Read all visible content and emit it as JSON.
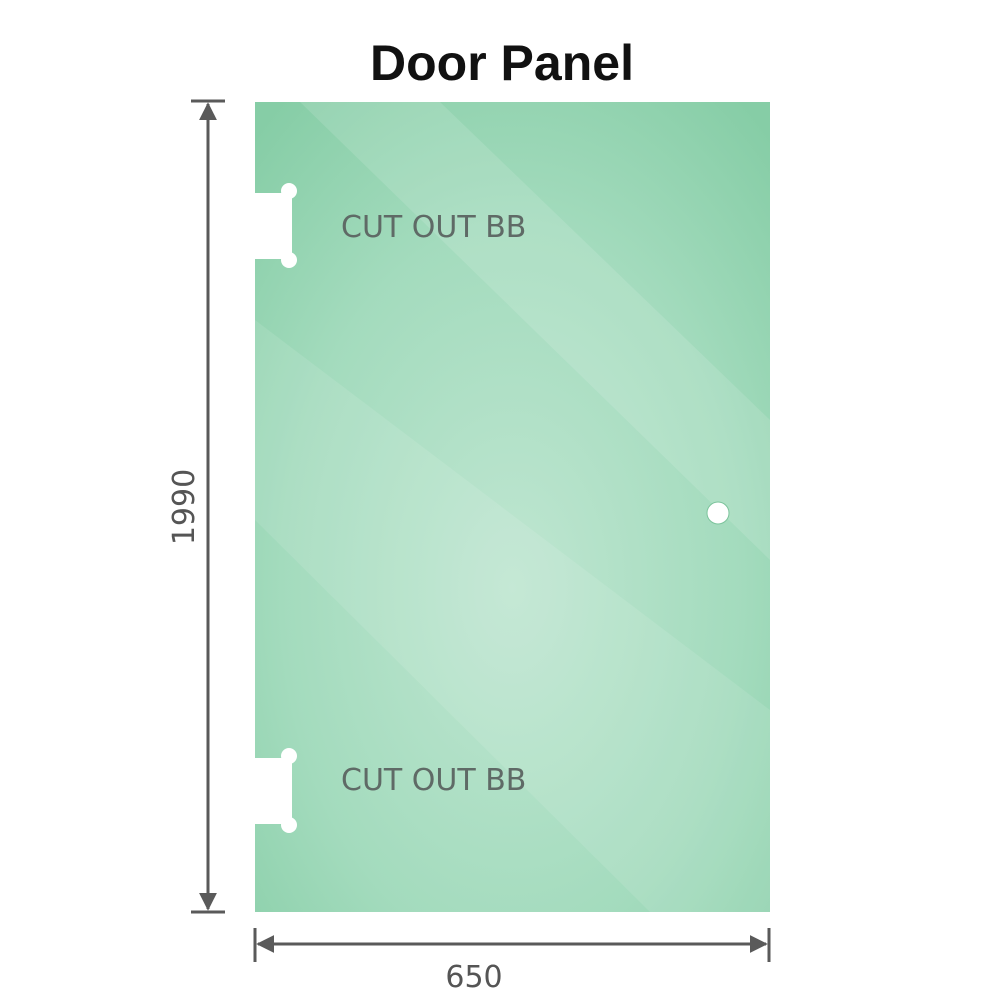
{
  "title": "Door Panel",
  "height_label": "1990",
  "width_label": "650",
  "cutouts": [
    {
      "label": "CUT OUT BB"
    },
    {
      "label": "CUT OUT BB"
    }
  ],
  "colors": {
    "glass_edge": "#86cda6",
    "glass_center": "#bde6d0",
    "dimension_line": "#5a5a5a",
    "label_text": "#5f6a66"
  }
}
